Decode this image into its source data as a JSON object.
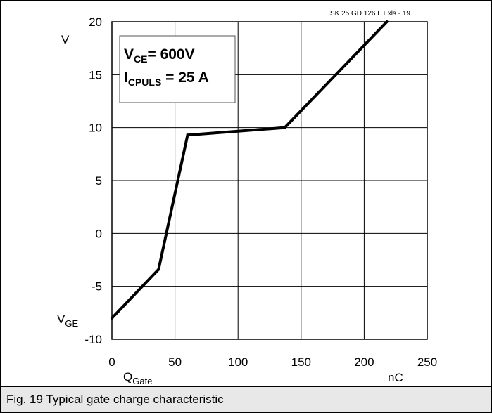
{
  "chart_data": {
    "type": "line",
    "file_label": "SK 25 GD 126 ET.xls - 19",
    "ylabel_top": "V",
    "ylabel_bottom_main": "V",
    "ylabel_bottom_sub": "GE",
    "xlabel_main": "Q",
    "xlabel_sub": "Gate",
    "xunit": "nC",
    "xlim": [
      0,
      250
    ],
    "ylim": [
      -10,
      20
    ],
    "xticks": [
      "0",
      "50",
      "100",
      "150",
      "200",
      "250"
    ],
    "yticks": [
      "20",
      "15",
      "10",
      "5",
      "0",
      "-5",
      "-10"
    ],
    "grid": true,
    "legend": {
      "line1_main": "V",
      "line1_sub": "CE",
      "line1_rest": "= 600V",
      "line2_main": "I",
      "line2_sub": "CPULS",
      "line2_rest": " = 25 A"
    },
    "series": [
      {
        "x": [
          0,
          37,
          60,
          137,
          218
        ],
        "y": [
          -8,
          -3.4,
          9.3,
          10.0,
          20
        ]
      }
    ]
  },
  "caption": "Fig. 19 Typical gate charge characteristic",
  "colors": {
    "line": "#000000",
    "caption_bg": "#e8e8e8"
  }
}
